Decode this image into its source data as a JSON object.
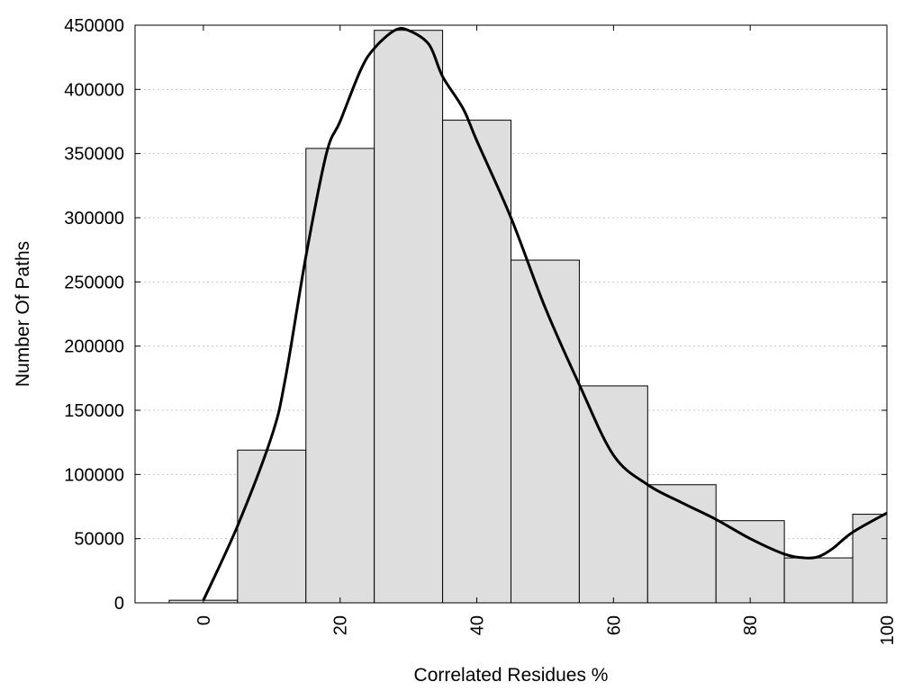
{
  "chart_data": {
    "type": "bar",
    "xlabel": "Correlated Residues %",
    "ylabel": "Number Of Paths",
    "xlim": [
      -10,
      100
    ],
    "ylim": [
      0,
      450000
    ],
    "grid": "horizontal dotted",
    "bin_width": 10,
    "categories": [
      0,
      10,
      20,
      30,
      40,
      50,
      60,
      70,
      80,
      90,
      100
    ],
    "values": [
      2000,
      119000,
      354000,
      446000,
      376000,
      267000,
      169000,
      92000,
      64000,
      35000,
      69000
    ],
    "x_ticks": [
      0,
      20,
      40,
      60,
      80,
      100
    ],
    "y_ticks": [
      0,
      50000,
      100000,
      150000,
      200000,
      250000,
      300000,
      350000,
      400000,
      450000
    ],
    "curve": {
      "x": [
        0,
        5,
        10,
        12,
        15,
        18,
        20,
        23,
        25,
        28,
        30,
        33,
        35,
        38,
        40,
        45,
        50,
        55,
        60,
        65,
        70,
        75,
        80,
        85,
        88,
        90,
        92,
        95,
        100
      ],
      "y": [
        2000,
        60000,
        130000,
        175000,
        270000,
        350000,
        375000,
        415000,
        432000,
        446000,
        446000,
        435000,
        410000,
        385000,
        360000,
        300000,
        230000,
        170000,
        115000,
        92000,
        78000,
        65000,
        50000,
        38000,
        35000,
        36000,
        42000,
        55000,
        70000
      ]
    },
    "colors": {
      "bar_fill": "#dedede",
      "bar_edge": "#000000",
      "curve": "#000000",
      "grid": "#c8c8c8"
    }
  }
}
